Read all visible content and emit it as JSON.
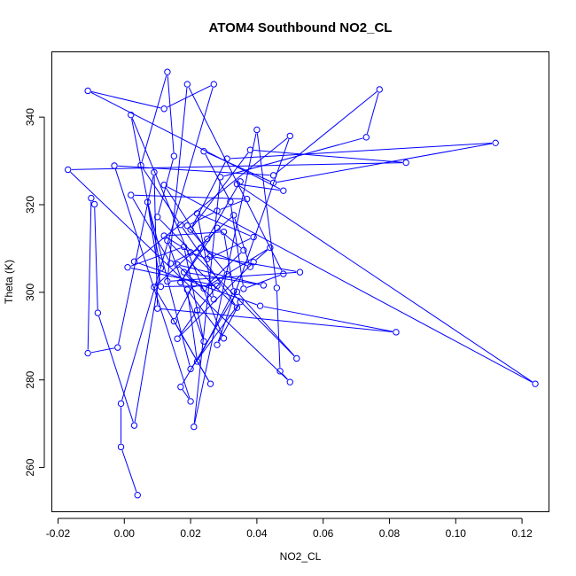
{
  "chart_data": {
    "type": "line",
    "title": "ATOM4 Southbound NO2_CL",
    "xlabel": "NO2_CL",
    "ylabel": "Theta (K)",
    "xlim": [
      -0.022,
      0.128
    ],
    "ylim": [
      250,
      355
    ],
    "x_ticks": [
      -0.02,
      0.0,
      0.02,
      0.04,
      0.06,
      0.08,
      0.1,
      0.12
    ],
    "x_tick_labels": [
      "-0.02",
      "0.00",
      "0.02",
      "0.04",
      "0.06",
      "0.08",
      "0.10",
      "0.12"
    ],
    "y_ticks": [
      260,
      280,
      300,
      320,
      340
    ],
    "y_tick_labels": [
      "260",
      "280",
      "300",
      "320",
      "340"
    ],
    "grid": false,
    "legend": "none",
    "series_color": "#0000ff",
    "marker": "open-circle",
    "series": [
      {
        "points": [
          [
            0.004,
            253.7
          ],
          [
            -0.001,
            264.7
          ],
          [
            -0.001,
            274.6
          ],
          [
            0.027,
            347.5
          ],
          [
            0.012,
            341.9
          ],
          [
            -0.011,
            346.0
          ],
          [
            0.048,
            323.2
          ],
          [
            0.034,
            324.7
          ],
          [
            0.124,
            279.1
          ],
          [
            0.012,
            324.5
          ],
          [
            0.026,
            308.2
          ],
          [
            0.053,
            304.6
          ],
          [
            0.013,
            302.5
          ],
          [
            0.019,
            347.5
          ],
          [
            0.048,
            304.2
          ],
          [
            0.036,
            300.8
          ],
          [
            0.032,
            320.7
          ],
          [
            0.024,
            332.2
          ],
          [
            0.045,
            325.0
          ],
          [
            0.112,
            334.1
          ],
          [
            0.031,
            330.5
          ],
          [
            0.02,
            314.3
          ],
          [
            0.038,
            332.5
          ],
          [
            0.085,
            329.6
          ],
          [
            -0.017,
            328.0
          ],
          [
            0.05,
            279.5
          ],
          [
            0.047,
            282.0
          ],
          [
            0.046,
            301.0
          ],
          [
            0.04,
            337.1
          ],
          [
            0.021,
            269.3
          ],
          [
            0.029,
            326.3
          ],
          [
            0.073,
            335.4
          ],
          [
            0.077,
            346.3
          ],
          [
            0.045,
            326.7
          ],
          [
            -0.003,
            328.9
          ],
          [
            0.02,
            275.1
          ],
          [
            0.017,
            278.4
          ],
          [
            0.034,
            300.1
          ],
          [
            0.052,
            284.9
          ],
          [
            0.01,
            317.2
          ],
          [
            0.015,
            331.1
          ],
          [
            0.013,
            350.3
          ],
          [
            0.005,
            329.0
          ],
          [
            0.017,
            315.4
          ],
          [
            0.034,
            296.5
          ],
          [
            0.013,
            311.8
          ],
          [
            0.024,
            288.8
          ],
          [
            0.018,
            310.4
          ],
          [
            0.001,
            305.7
          ],
          [
            0.028,
            301.5
          ],
          [
            0.011,
            301.3
          ],
          [
            0.007,
            320.6
          ],
          [
            0.02,
            282.5
          ],
          [
            0.035,
            297.8
          ],
          [
            0.028,
            288.0
          ],
          [
            0.05,
            335.7
          ],
          [
            0.003,
            307.0
          ],
          [
            0.041,
            296.9
          ],
          [
            0.082,
            290.9
          ],
          [
            0.01,
            296.3
          ],
          [
            0.009,
            327.4
          ],
          [
            -0.002,
            287.4
          ],
          [
            -0.011,
            286.1
          ],
          [
            -0.01,
            321.5
          ],
          [
            -0.009,
            320.1
          ],
          [
            -0.008,
            295.3
          ],
          [
            0.003,
            269.6
          ],
          [
            0.011,
            305.5
          ],
          [
            0.002,
            340.5
          ],
          [
            0.03,
            289.5
          ],
          [
            0.019,
            300.6
          ],
          [
            0.022,
            284.2
          ],
          [
            0.033,
            300.2
          ],
          [
            0.03,
            313.8
          ],
          [
            0.012,
            312.9
          ],
          [
            0.02,
            309.1
          ],
          [
            0.025,
            307.6
          ],
          [
            0.039,
            312.6
          ],
          [
            0.022,
            318.0
          ],
          [
            0.027,
            298.4
          ],
          [
            0.016,
            306.3
          ],
          [
            0.042,
            301.6
          ],
          [
            0.018,
            304.6
          ],
          [
            0.021,
            301.9
          ],
          [
            0.015,
            293.4
          ],
          [
            0.026,
            279.1
          ],
          [
            0.009,
            301.2
          ],
          [
            0.033,
            317.6
          ],
          [
            0.038,
            305.8
          ],
          [
            0.023,
            310.1
          ],
          [
            0.014,
            306.6
          ],
          [
            0.002,
            322.2
          ],
          [
            0.037,
            321.3
          ],
          [
            0.028,
            318.6
          ],
          [
            0.019,
            315.2
          ],
          [
            0.031,
            304.1
          ],
          [
            0.022,
            295.9
          ],
          [
            0.016,
            289.4
          ],
          [
            0.039,
            306.9
          ],
          [
            0.044,
            310.2
          ],
          [
            0.024,
            300.9
          ],
          [
            0.036,
            309.6
          ],
          [
            0.028,
            314.7
          ],
          [
            0.017,
            302.3
          ],
          [
            0.025,
            312.2
          ],
          [
            0.035,
            325.3
          ]
        ]
      }
    ]
  }
}
